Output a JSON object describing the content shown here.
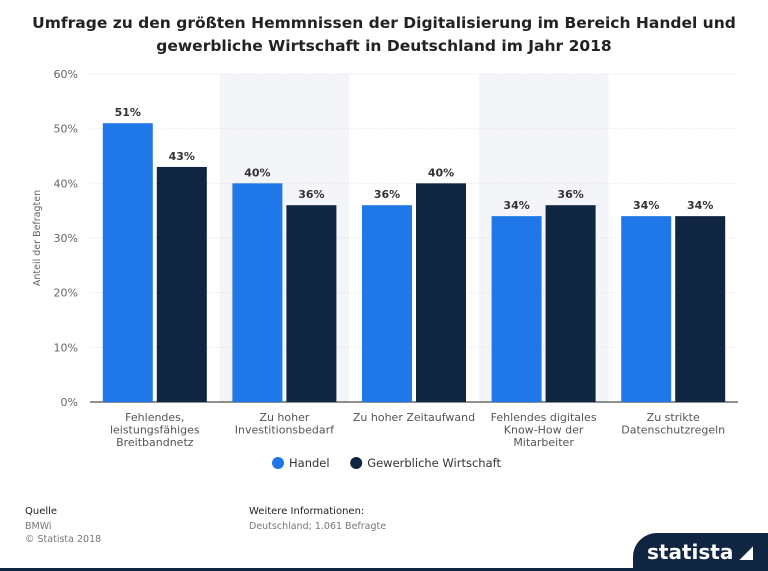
{
  "title": "Umfrage zu den größten Hemmnissen der Digitalisierung im Bereich Handel und gewerbliche Wirtschaft in Deutschland im Jahr 2018",
  "chart_data": {
    "type": "bar",
    "title": "Umfrage zu den größten Hemmnissen der Digitalisierung im Bereich Handel und gewerbliche Wirtschaft in Deutschland im Jahr 2018",
    "ylabel": "Anteil der Befragten",
    "xlabel": "",
    "ylim": [
      0,
      60
    ],
    "yticks": [
      "0%",
      "10%",
      "20%",
      "30%",
      "40%",
      "50%",
      "60%"
    ],
    "categories": [
      [
        "Fehlendes,",
        "leistungsfähiges",
        "Breitbandnetz"
      ],
      [
        "Zu hoher",
        "Investitionsbedarf"
      ],
      [
        "Zu hoher Zeitaufwand"
      ],
      [
        "Fehlendes digitales",
        "Know-How der",
        "Mitarbeiter"
      ],
      [
        "Zu strikte",
        "Datenschutzregeln"
      ]
    ],
    "series": [
      {
        "name": "Handel",
        "color": "#1f77e8",
        "values": [
          51,
          40,
          36,
          34,
          34
        ],
        "labels": [
          "51%",
          "40%",
          "36%",
          "34%",
          "34%"
        ]
      },
      {
        "name": "Gewerbliche Wirtschaft",
        "color": "#0f2541",
        "values": [
          43,
          36,
          40,
          36,
          34
        ],
        "labels": [
          "43%",
          "36%",
          "40%",
          "36%",
          "34%"
        ]
      }
    ],
    "legend_position": "bottom",
    "grid": true
  },
  "footer": {
    "source_label": "Quelle",
    "source_lines": [
      "BMWi",
      "© Statista 2018"
    ],
    "info_label": "Weitere Informationen:",
    "info_text": "Deutschland; 1.061 Befragte"
  },
  "brand": "statista"
}
